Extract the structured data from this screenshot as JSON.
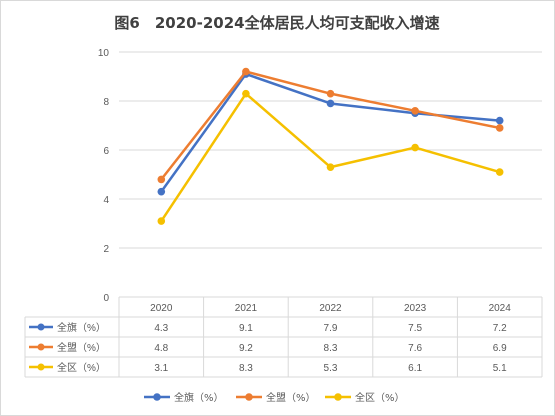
{
  "chart_data": {
    "type": "line",
    "title": "图6　2020-2024全体居民人均可支配收入增速",
    "categories": [
      "2020",
      "2021",
      "2022",
      "2023",
      "2024"
    ],
    "ylim": [
      0,
      10
    ],
    "yticks": [
      0,
      2,
      4,
      6,
      8,
      10
    ],
    "grid": true,
    "legend_position": "bottom",
    "data_table": true,
    "series": [
      {
        "name": "全旗（%）",
        "color": "#4472c4",
        "values": [
          4.3,
          9.1,
          7.9,
          7.5,
          7.2
        ]
      },
      {
        "name": "全盟（%）",
        "color": "#ed7d31",
        "values": [
          4.8,
          9.2,
          8.3,
          7.6,
          6.9
        ]
      },
      {
        "name": "全区（%）",
        "color": "#f5c000",
        "values": [
          3.1,
          8.3,
          5.3,
          6.1,
          5.1
        ]
      }
    ]
  }
}
